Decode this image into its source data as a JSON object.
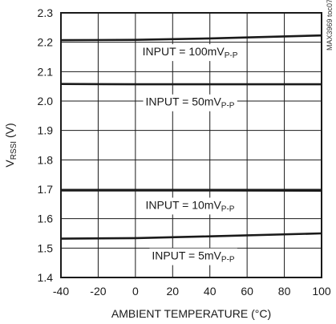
{
  "chart_data": {
    "type": "line",
    "title": "",
    "xlabel": "AMBIENT TEMPERATURE (°C)",
    "ylabel": {
      "main": "V",
      "sub": "RSSI",
      "unit": " (V)"
    },
    "xlim": [
      -40,
      100
    ],
    "ylim": [
      1.4,
      2.3
    ],
    "xticks": [
      -40,
      -20,
      0,
      20,
      40,
      60,
      80,
      100
    ],
    "yticks": [
      1.4,
      1.5,
      1.6,
      1.7,
      1.8,
      1.9,
      2.0,
      2.1,
      2.2,
      2.3
    ],
    "grid": true,
    "corner_tag": "MAX3969 toc07",
    "series": [
      {
        "label_main": "INPUT = 100mV",
        "label_sub": "P-P",
        "x": [
          -40,
          0,
          40,
          100
        ],
        "y": [
          2.207,
          2.208,
          2.213,
          2.223
        ]
      },
      {
        "label_main": "INPUT = 50mV",
        "label_sub": "P-P",
        "x": [
          -40,
          0,
          40,
          100
        ],
        "y": [
          2.058,
          2.057,
          2.057,
          2.057
        ]
      },
      {
        "label_main": "INPUT = 10mV",
        "label_sub": "P-P",
        "x": [
          -40,
          0,
          40,
          100
        ],
        "y": [
          1.696,
          1.696,
          1.696,
          1.695
        ]
      },
      {
        "label_main": "INPUT = 5mV",
        "label_sub": "P-P",
        "x": [
          -40,
          0,
          40,
          100
        ],
        "y": [
          1.532,
          1.534,
          1.54,
          1.55
        ]
      }
    ]
  }
}
